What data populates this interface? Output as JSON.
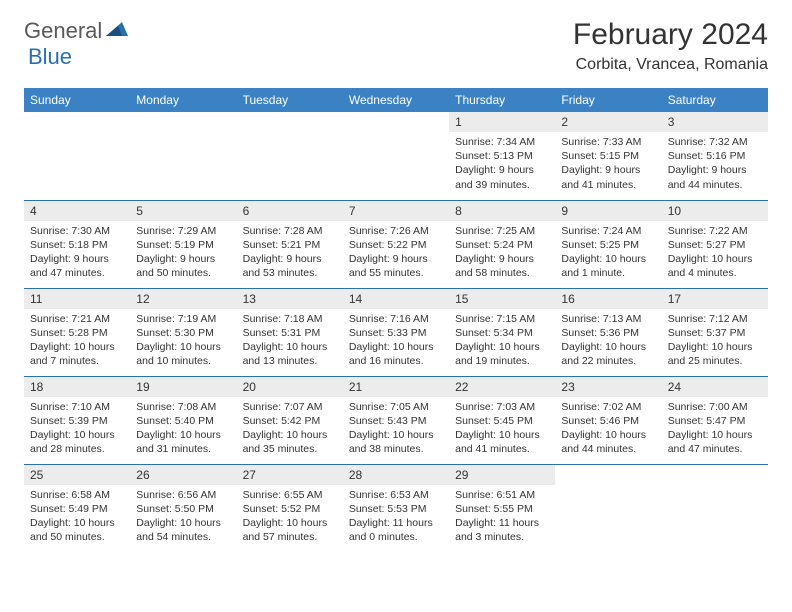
{
  "logo": {
    "part1": "General",
    "part2": "Blue"
  },
  "title": "February 2024",
  "location": "Corbita, Vrancea, Romania",
  "colors": {
    "header_bg": "#3b82c4",
    "header_text": "#ffffff",
    "border": "#2b6fb0",
    "daynum_bg": "#ececec",
    "logo_gray": "#5a5a5a",
    "logo_blue": "#2b6fb0"
  },
  "weekdays": [
    "Sunday",
    "Monday",
    "Tuesday",
    "Wednesday",
    "Thursday",
    "Friday",
    "Saturday"
  ],
  "weeks": [
    [
      null,
      null,
      null,
      null,
      {
        "n": "1",
        "sunrise": "Sunrise: 7:34 AM",
        "sunset": "Sunset: 5:13 PM",
        "daylight": "Daylight: 9 hours and 39 minutes."
      },
      {
        "n": "2",
        "sunrise": "Sunrise: 7:33 AM",
        "sunset": "Sunset: 5:15 PM",
        "daylight": "Daylight: 9 hours and 41 minutes."
      },
      {
        "n": "3",
        "sunrise": "Sunrise: 7:32 AM",
        "sunset": "Sunset: 5:16 PM",
        "daylight": "Daylight: 9 hours and 44 minutes."
      }
    ],
    [
      {
        "n": "4",
        "sunrise": "Sunrise: 7:30 AM",
        "sunset": "Sunset: 5:18 PM",
        "daylight": "Daylight: 9 hours and 47 minutes."
      },
      {
        "n": "5",
        "sunrise": "Sunrise: 7:29 AM",
        "sunset": "Sunset: 5:19 PM",
        "daylight": "Daylight: 9 hours and 50 minutes."
      },
      {
        "n": "6",
        "sunrise": "Sunrise: 7:28 AM",
        "sunset": "Sunset: 5:21 PM",
        "daylight": "Daylight: 9 hours and 53 minutes."
      },
      {
        "n": "7",
        "sunrise": "Sunrise: 7:26 AM",
        "sunset": "Sunset: 5:22 PM",
        "daylight": "Daylight: 9 hours and 55 minutes."
      },
      {
        "n": "8",
        "sunrise": "Sunrise: 7:25 AM",
        "sunset": "Sunset: 5:24 PM",
        "daylight": "Daylight: 9 hours and 58 minutes."
      },
      {
        "n": "9",
        "sunrise": "Sunrise: 7:24 AM",
        "sunset": "Sunset: 5:25 PM",
        "daylight": "Daylight: 10 hours and 1 minute."
      },
      {
        "n": "10",
        "sunrise": "Sunrise: 7:22 AM",
        "sunset": "Sunset: 5:27 PM",
        "daylight": "Daylight: 10 hours and 4 minutes."
      }
    ],
    [
      {
        "n": "11",
        "sunrise": "Sunrise: 7:21 AM",
        "sunset": "Sunset: 5:28 PM",
        "daylight": "Daylight: 10 hours and 7 minutes."
      },
      {
        "n": "12",
        "sunrise": "Sunrise: 7:19 AM",
        "sunset": "Sunset: 5:30 PM",
        "daylight": "Daylight: 10 hours and 10 minutes."
      },
      {
        "n": "13",
        "sunrise": "Sunrise: 7:18 AM",
        "sunset": "Sunset: 5:31 PM",
        "daylight": "Daylight: 10 hours and 13 minutes."
      },
      {
        "n": "14",
        "sunrise": "Sunrise: 7:16 AM",
        "sunset": "Sunset: 5:33 PM",
        "daylight": "Daylight: 10 hours and 16 minutes."
      },
      {
        "n": "15",
        "sunrise": "Sunrise: 7:15 AM",
        "sunset": "Sunset: 5:34 PM",
        "daylight": "Daylight: 10 hours and 19 minutes."
      },
      {
        "n": "16",
        "sunrise": "Sunrise: 7:13 AM",
        "sunset": "Sunset: 5:36 PM",
        "daylight": "Daylight: 10 hours and 22 minutes."
      },
      {
        "n": "17",
        "sunrise": "Sunrise: 7:12 AM",
        "sunset": "Sunset: 5:37 PM",
        "daylight": "Daylight: 10 hours and 25 minutes."
      }
    ],
    [
      {
        "n": "18",
        "sunrise": "Sunrise: 7:10 AM",
        "sunset": "Sunset: 5:39 PM",
        "daylight": "Daylight: 10 hours and 28 minutes."
      },
      {
        "n": "19",
        "sunrise": "Sunrise: 7:08 AM",
        "sunset": "Sunset: 5:40 PM",
        "daylight": "Daylight: 10 hours and 31 minutes."
      },
      {
        "n": "20",
        "sunrise": "Sunrise: 7:07 AM",
        "sunset": "Sunset: 5:42 PM",
        "daylight": "Daylight: 10 hours and 35 minutes."
      },
      {
        "n": "21",
        "sunrise": "Sunrise: 7:05 AM",
        "sunset": "Sunset: 5:43 PM",
        "daylight": "Daylight: 10 hours and 38 minutes."
      },
      {
        "n": "22",
        "sunrise": "Sunrise: 7:03 AM",
        "sunset": "Sunset: 5:45 PM",
        "daylight": "Daylight: 10 hours and 41 minutes."
      },
      {
        "n": "23",
        "sunrise": "Sunrise: 7:02 AM",
        "sunset": "Sunset: 5:46 PM",
        "daylight": "Daylight: 10 hours and 44 minutes."
      },
      {
        "n": "24",
        "sunrise": "Sunrise: 7:00 AM",
        "sunset": "Sunset: 5:47 PM",
        "daylight": "Daylight: 10 hours and 47 minutes."
      }
    ],
    [
      {
        "n": "25",
        "sunrise": "Sunrise: 6:58 AM",
        "sunset": "Sunset: 5:49 PM",
        "daylight": "Daylight: 10 hours and 50 minutes."
      },
      {
        "n": "26",
        "sunrise": "Sunrise: 6:56 AM",
        "sunset": "Sunset: 5:50 PM",
        "daylight": "Daylight: 10 hours and 54 minutes."
      },
      {
        "n": "27",
        "sunrise": "Sunrise: 6:55 AM",
        "sunset": "Sunset: 5:52 PM",
        "daylight": "Daylight: 10 hours and 57 minutes."
      },
      {
        "n": "28",
        "sunrise": "Sunrise: 6:53 AM",
        "sunset": "Sunset: 5:53 PM",
        "daylight": "Daylight: 11 hours and 0 minutes."
      },
      {
        "n": "29",
        "sunrise": "Sunrise: 6:51 AM",
        "sunset": "Sunset: 5:55 PM",
        "daylight": "Daylight: 11 hours and 3 minutes."
      },
      null,
      null
    ]
  ]
}
